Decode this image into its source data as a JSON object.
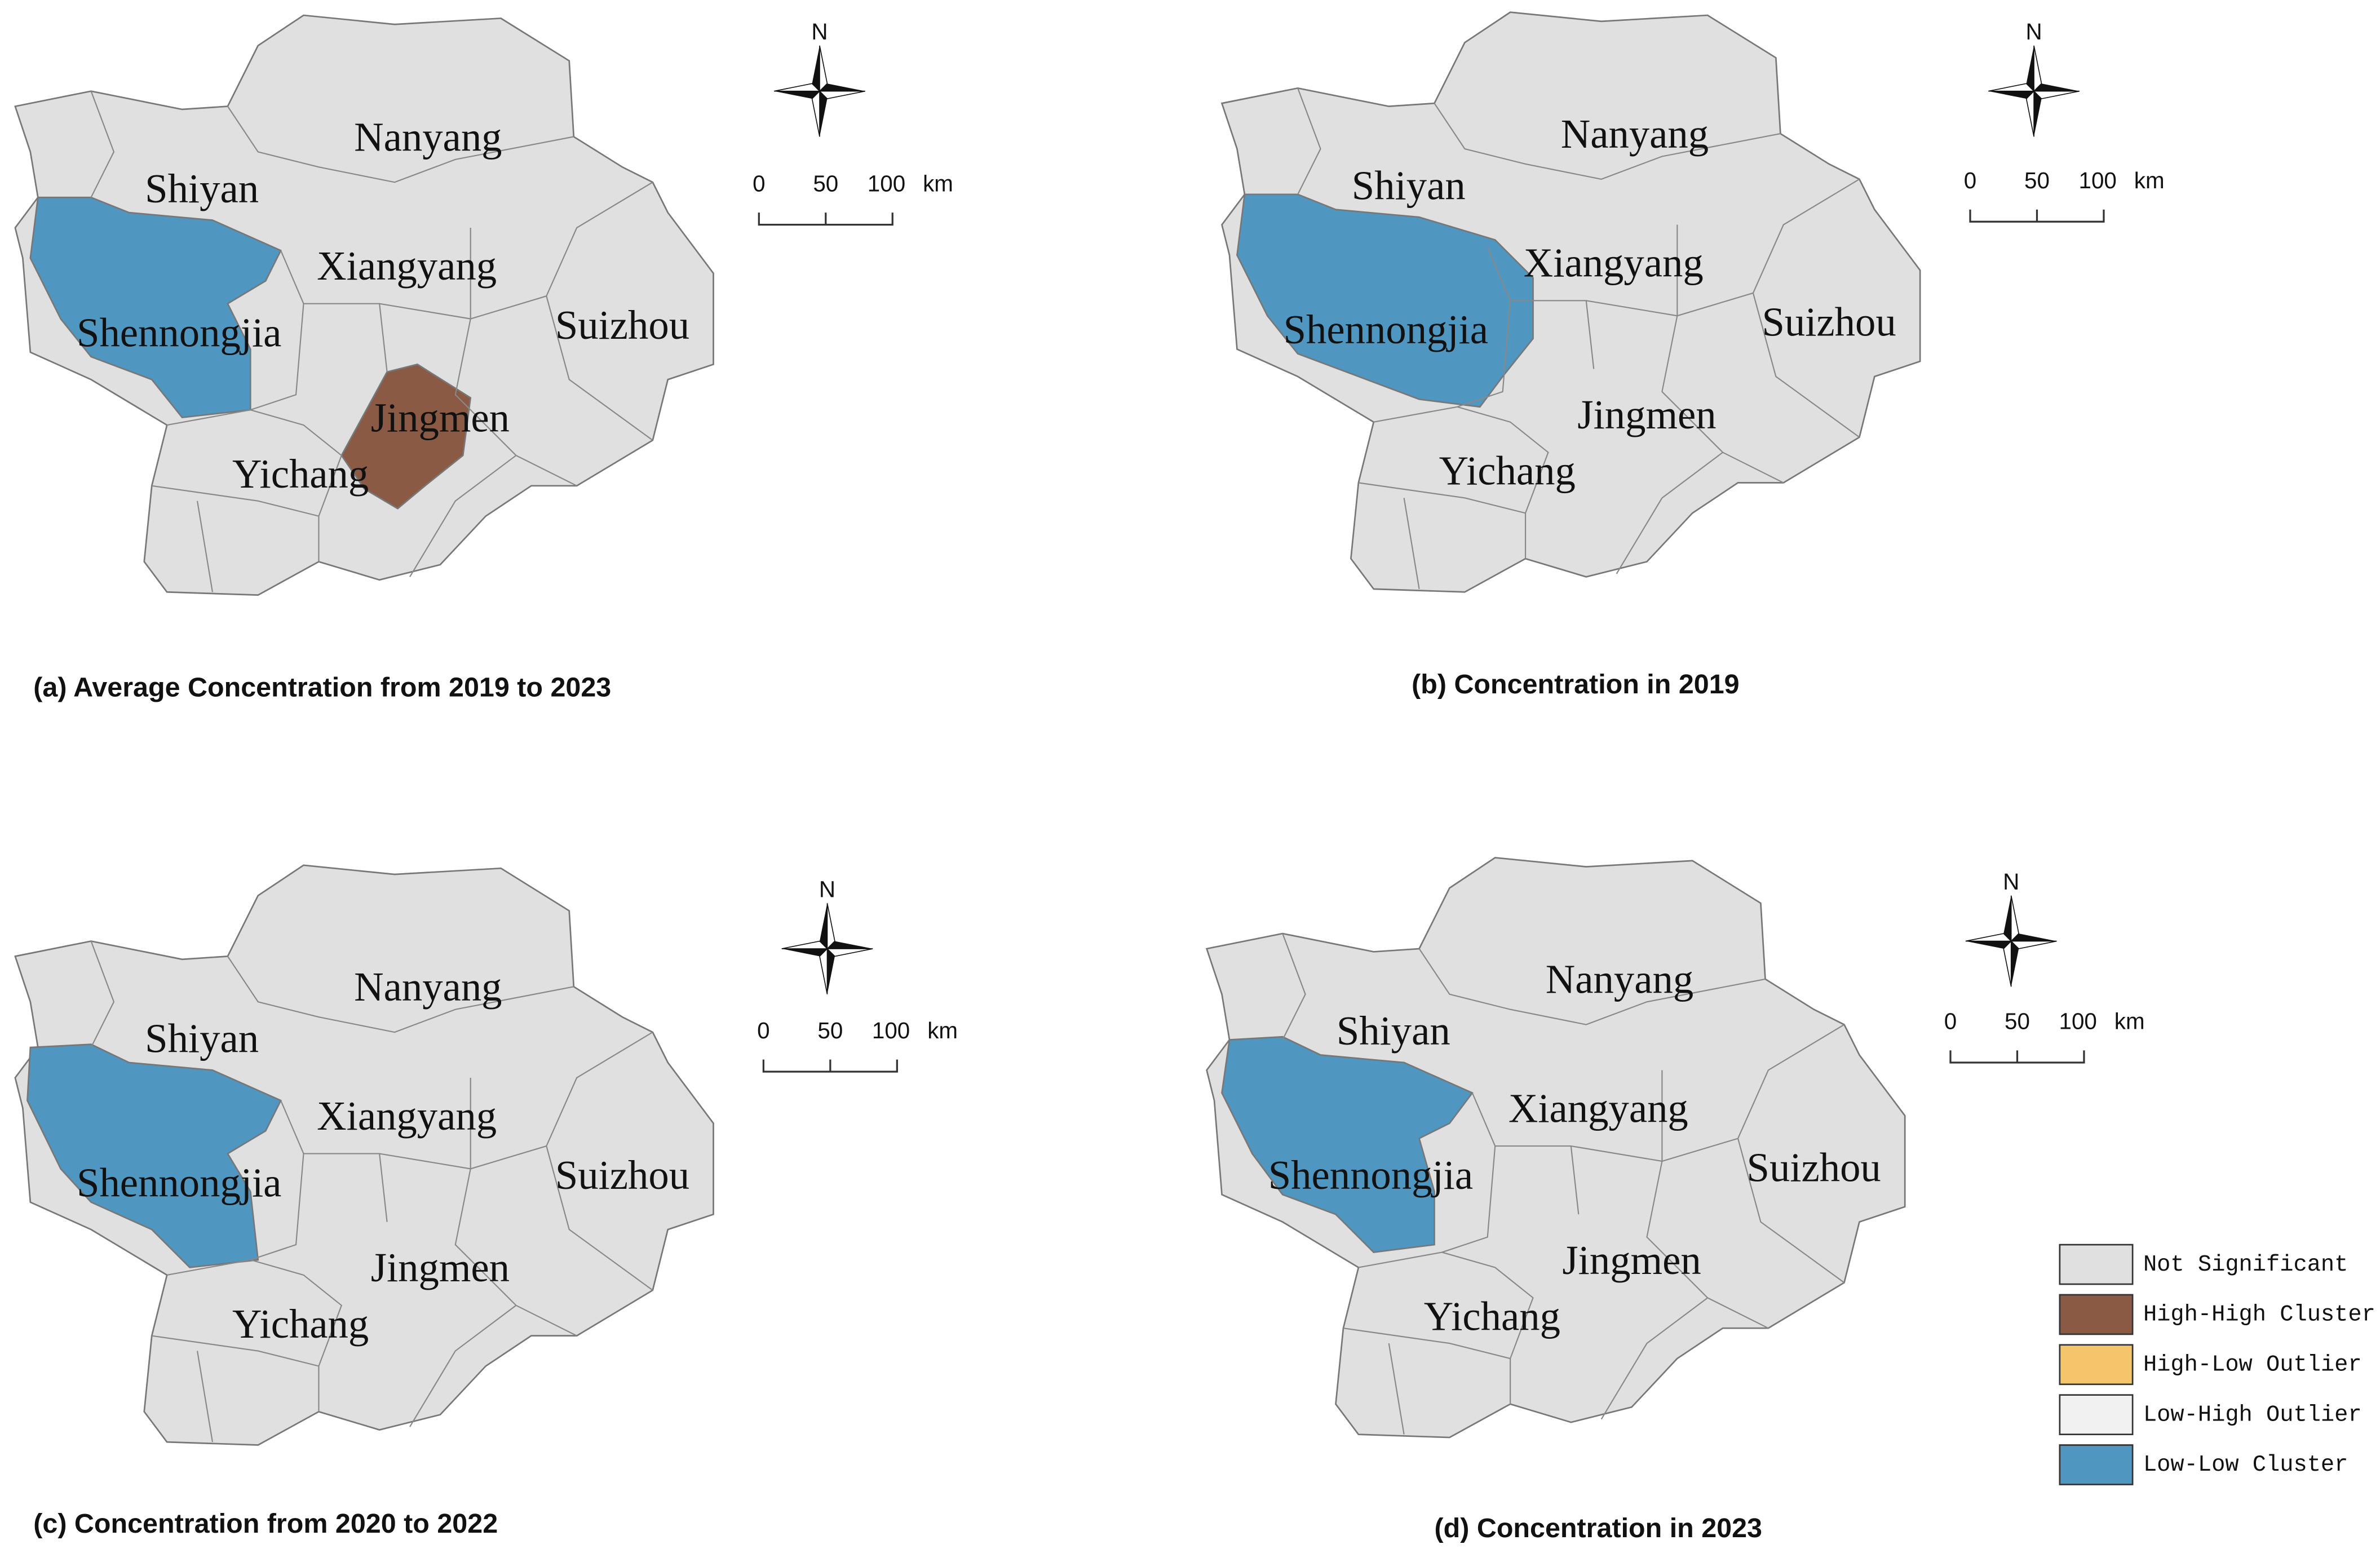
{
  "panels": [
    {
      "caption": "(a) Average Concentration from 2019 to 2023",
      "north": "N",
      "scale_labels": [
        "0",
        "50",
        "100",
        "km"
      ],
      "city_labels": [
        "Nanyang",
        "Shiyan",
        "Xiangyang",
        "Shennongjia",
        "Suizhou",
        "Jingmen",
        "Yichang"
      ]
    },
    {
      "caption": "(b) Concentration in 2019",
      "north": "N",
      "scale_labels": [
        "0",
        "50",
        "100",
        "km"
      ],
      "city_labels": [
        "Nanyang",
        "Shiyan",
        "Xiangyang",
        "Shennongjia",
        "Suizhou",
        "Jingmen",
        "Yichang"
      ]
    },
    {
      "caption": "(c) Concentration from 2020 to 2022",
      "north": "N",
      "scale_labels": [
        "0",
        "50",
        "100",
        "km"
      ],
      "city_labels": [
        "Nanyang",
        "Shiyan",
        "Xiangyang",
        "Shennongjia",
        "Suizhou",
        "Jingmen",
        "Yichang"
      ]
    },
    {
      "caption": "(d) Concentration in 2023",
      "north": "N",
      "scale_labels": [
        "0",
        "50",
        "100",
        "km"
      ],
      "city_labels": [
        "Nanyang",
        "Shiyan",
        "Xiangyang",
        "Shennongjia",
        "Suizhou",
        "Jingmen",
        "Yichang"
      ]
    }
  ],
  "legend": [
    {
      "label": "Not Significant",
      "color": "#e0e0e0"
    },
    {
      "label": "High-High Cluster",
      "color": "#8b5a44"
    },
    {
      "label": "High-Low Outlier",
      "color": "#f5c56b"
    },
    {
      "label": "Low-High Outlier",
      "color": "#f1f1f1"
    },
    {
      "label": "Low-Low Cluster",
      "color": "#4f96c0"
    }
  ]
}
